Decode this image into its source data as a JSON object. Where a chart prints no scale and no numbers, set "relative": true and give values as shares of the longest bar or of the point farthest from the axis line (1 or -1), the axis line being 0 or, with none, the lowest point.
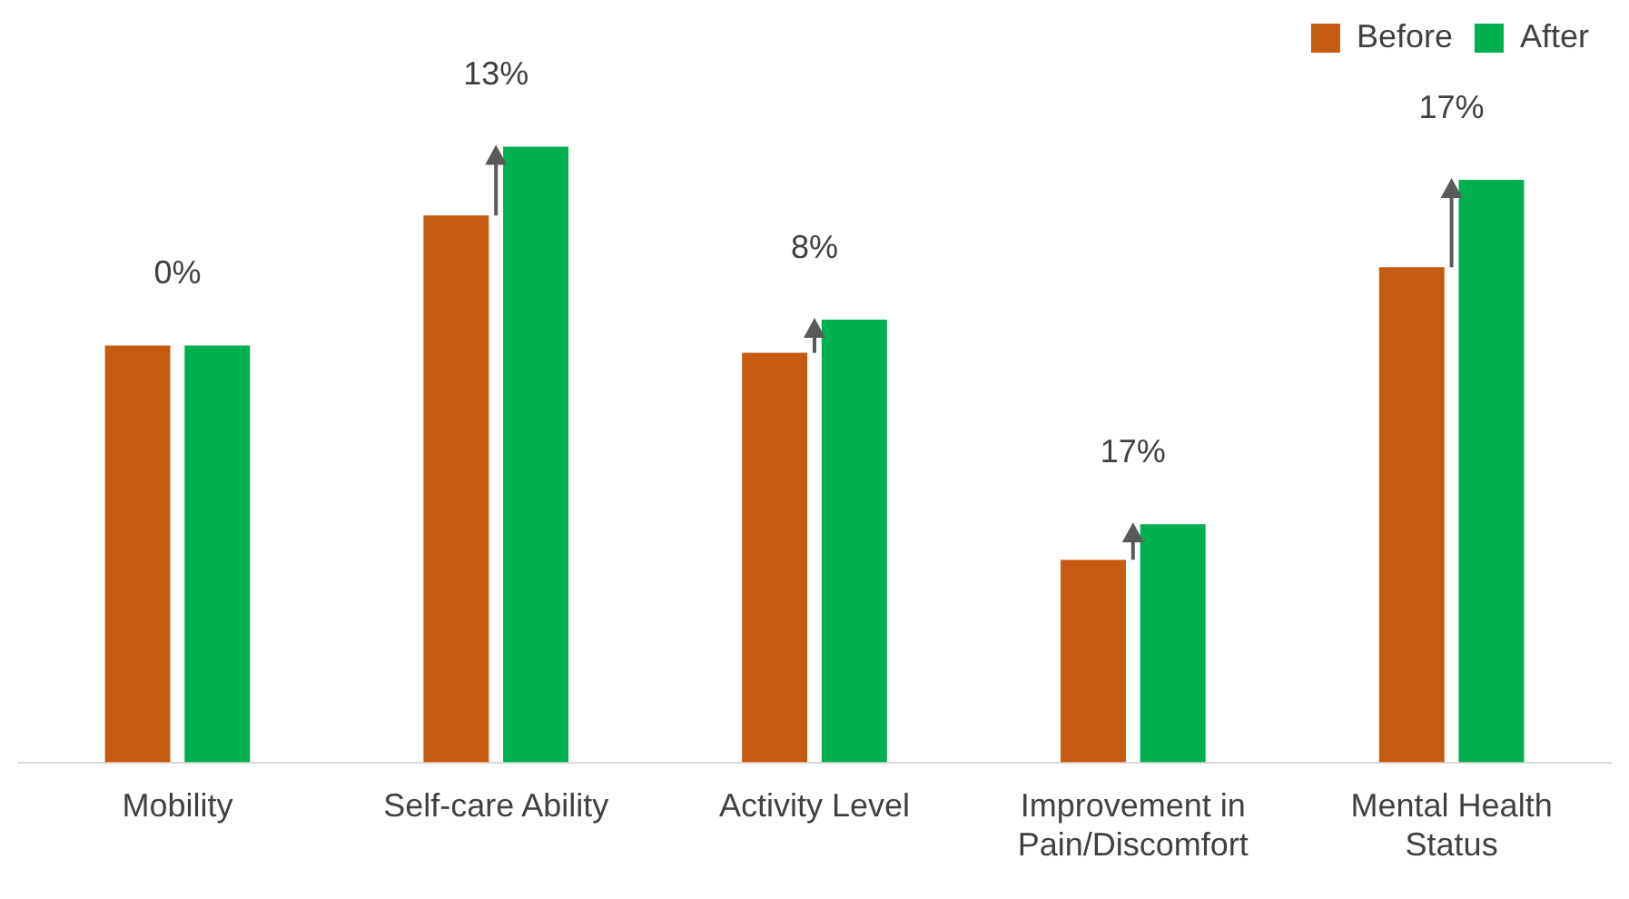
{
  "chart_data": {
    "type": "bar",
    "relative": true,
    "categories": [
      "Mobility",
      "Self-care Ability",
      "Activity Level",
      "Improvement in Pain/Discomfort",
      "Mental Health Status"
    ],
    "series": [
      {
        "name": "Before",
        "color": "#c55a11",
        "values": [
          0.677,
          0.888,
          0.665,
          0.329,
          0.804
        ]
      },
      {
        "name": "After",
        "color": "#00b050",
        "values": [
          0.677,
          1,
          0.719,
          0.387,
          0.946
        ]
      }
    ],
    "annotations": [
      "0%",
      "13%",
      "8%",
      "17%",
      "17%"
    ],
    "legend": "top right",
    "grid": false
  }
}
